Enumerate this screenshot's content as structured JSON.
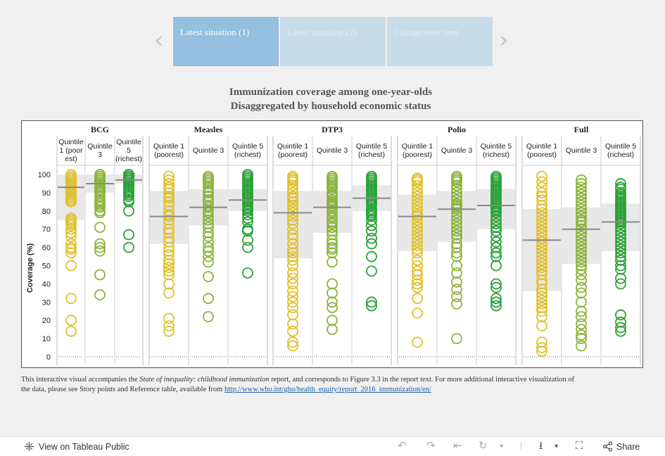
{
  "tabs": [
    {
      "label": "Latest situation (1)",
      "state": "active"
    },
    {
      "label": "Latest situation (2)",
      "state": "inactive"
    },
    {
      "label": "Change over time",
      "state": "inactive"
    }
  ],
  "title_line1": "Immunization coverage among one-year-olds",
  "title_line2": "Disaggregated by household economic status",
  "footnote": {
    "pre": "This interactive visual accompanies the ",
    "italic": "State of inequality: childhood immunization",
    "post": " report, and corresponds to Figure 3.3 in the report text. For more additional interactive visualization of the data, please see Story points and Reference table, available from ",
    "link": "http://www.who.int/gho/health_equity/report_2016_immunization/en/"
  },
  "toolbar": {
    "view_label": "View on Tableau Public",
    "share_label": "Share"
  },
  "colors": {
    "q1": "#e0c12e",
    "q3": "#8cb43c",
    "q5": "#2aa237",
    "band": "#e8e8e8",
    "median": "#8a8a8a"
  },
  "chart_data": {
    "type": "scatter",
    "ylabel": "Coverage (%)",
    "ylim": [
      0,
      100
    ],
    "yticks": [
      0,
      10,
      20,
      30,
      40,
      50,
      60,
      70,
      80,
      90,
      100
    ],
    "quintiles": [
      {
        "key": "q1",
        "lines": [
          "Quintile 1",
          "(poorest)"
        ],
        "lines_narrow": [
          "Quintile",
          "1 (poor",
          "est)"
        ]
      },
      {
        "key": "q3",
        "lines": [
          "Quintile 3"
        ],
        "lines_narrow": [
          "Quintile",
          "3"
        ]
      },
      {
        "key": "q5",
        "lines": [
          "Quintile 5",
          "(richest)"
        ],
        "lines_narrow": [
          "Quintile",
          "5",
          "(richest)"
        ]
      }
    ],
    "vaccines": [
      {
        "name": "BCG",
        "series": [
          {
            "quintile": "q1",
            "median": 93,
            "band": [
              75,
              100
            ],
            "values": [
              100,
              99,
              98,
              98,
              97,
              97,
              96,
              96,
              95,
              95,
              94,
              94,
              93,
              93,
              92,
              92,
              91,
              90,
              89,
              88,
              87,
              86,
              85,
              76,
              75,
              74,
              73,
              72,
              70,
              68,
              66,
              62,
              60,
              59,
              57,
              50,
              32,
              20,
              14
            ]
          },
          {
            "quintile": "q3",
            "median": 95,
            "band": [
              90,
              100
            ],
            "values": [
              100,
              99,
              99,
              98,
              97,
              97,
              96,
              95,
              94,
              93,
              92,
              91,
              90,
              88,
              86,
              85,
              84,
              83,
              82,
              80,
              79,
              71,
              62,
              60,
              58,
              45,
              34
            ]
          },
          {
            "quintile": "q5",
            "median": 97,
            "band": [
              95,
              100
            ],
            "values": [
              100,
              100,
              99,
              99,
              99,
              98,
              98,
              98,
              97,
              97,
              96,
              96,
              95,
              94,
              93,
              92,
              91,
              90,
              89,
              88,
              86,
              85,
              80,
              67,
              60
            ]
          }
        ]
      },
      {
        "name": "Measles",
        "series": [
          {
            "quintile": "q1",
            "median": 77,
            "band": [
              62,
              91
            ],
            "values": [
              99,
              97,
              95,
              93,
              92,
              90,
              88,
              87,
              85,
              83,
              80,
              78,
              77,
              75,
              73,
              70,
              68,
              65,
              63,
              60,
              58,
              56,
              53,
              51,
              49,
              47,
              45,
              40,
              35,
              21,
              17,
              14
            ]
          },
          {
            "quintile": "q3",
            "median": 82,
            "band": [
              72,
              92
            ],
            "values": [
              99,
              98,
              97,
              96,
              95,
              93,
              91,
              90,
              88,
              86,
              85,
              83,
              82,
              80,
              79,
              77,
              75,
              73,
              71,
              68,
              66,
              63,
              60,
              58,
              55,
              52,
              44,
              32,
              22
            ]
          },
          {
            "quintile": "q5",
            "median": 86,
            "band": [
              80,
              92
            ],
            "values": [
              100,
              99,
              98,
              97,
              96,
              95,
              94,
              93,
              92,
              91,
              90,
              89,
              88,
              87,
              86,
              85,
              84,
              83,
              82,
              81,
              80,
              78,
              76,
              74,
              70,
              69,
              64,
              60,
              46
            ]
          }
        ]
      },
      {
        "name": "DTP3",
        "series": [
          {
            "quintile": "q1",
            "median": 79,
            "band": [
              54,
              91
            ],
            "values": [
              99,
              98,
              97,
              96,
              94,
              92,
              90,
              88,
              87,
              85,
              83,
              81,
              79,
              77,
              75,
              73,
              70,
              67,
              65,
              62,
              59,
              57,
              55,
              53,
              50,
              46,
              43,
              40,
              36,
              33,
              30,
              27,
              23,
              18,
              14,
              8,
              6
            ]
          },
          {
            "quintile": "q3",
            "median": 82,
            "band": [
              68,
              91
            ],
            "values": [
              99,
              98,
              97,
              96,
              95,
              94,
              93,
              92,
              90,
              89,
              88,
              86,
              85,
              84,
              83,
              82,
              80,
              79,
              77,
              76,
              74,
              73,
              71,
              69,
              67,
              64,
              62,
              60,
              59,
              57,
              52,
              40,
              35,
              30,
              27,
              20,
              15
            ]
          },
          {
            "quintile": "q5",
            "median": 87,
            "band": [
              80,
              94
            ],
            "values": [
              99,
              98,
              97,
              96,
              95,
              94,
              93,
              92,
              91,
              90,
              89,
              88,
              87,
              86,
              85,
              84,
              83,
              81,
              80,
              79,
              78,
              77,
              75,
              72,
              69,
              65,
              62,
              55,
              47,
              30,
              28
            ]
          }
        ]
      },
      {
        "name": "Polio",
        "series": [
          {
            "quintile": "q1",
            "median": 77,
            "band": [
              58,
              89
            ],
            "values": [
              98,
              97,
              96,
              94,
              92,
              90,
              88,
              86,
              84,
              82,
              80,
              78,
              77,
              75,
              73,
              71,
              69,
              67,
              65,
              63,
              61,
              59,
              57,
              53,
              50,
              47,
              45,
              42,
              40,
              38,
              32,
              24,
              8
            ]
          },
          {
            "quintile": "q3",
            "median": 81,
            "band": [
              63,
              91
            ],
            "values": [
              99,
              98,
              97,
              96,
              94,
              92,
              90,
              88,
              86,
              84,
              83,
              82,
              81,
              79,
              77,
              75,
              73,
              71,
              69,
              67,
              65,
              62,
              60,
              57,
              55,
              50,
              46,
              41,
              37,
              33,
              29,
              10
            ]
          },
          {
            "quintile": "q5",
            "median": 83,
            "band": [
              70,
              92
            ],
            "values": [
              99,
              98,
              97,
              96,
              95,
              94,
              93,
              92,
              91,
              90,
              89,
              88,
              87,
              86,
              85,
              84,
              83,
              82,
              81,
              80,
              79,
              77,
              75,
              73,
              71,
              69,
              66,
              63,
              60,
              57,
              55,
              50,
              40,
              38,
              32,
              30,
              28
            ]
          }
        ]
      },
      {
        "name": "Full",
        "series": [
          {
            "quintile": "q1",
            "median": 64,
            "band": [
              36,
              81
            ],
            "values": [
              99,
              96,
              93,
              90,
              88,
              86,
              83,
              81,
              79,
              77,
              75,
              73,
              71,
              69,
              67,
              65,
              63,
              61,
              59,
              57,
              55,
              53,
              51,
              49,
              47,
              45,
              42,
              40,
              37,
              35,
              33,
              31,
              29,
              27,
              25,
              22,
              17,
              8,
              5,
              3
            ]
          },
          {
            "quintile": "q3",
            "median": 70,
            "band": [
              51,
              82
            ],
            "values": [
              97,
              95,
              93,
              91,
              89,
              87,
              85,
              83,
              81,
              79,
              77,
              75,
              74,
              72,
              70,
              68,
              66,
              64,
              62,
              60,
              58,
              56,
              54,
              52,
              50,
              48,
              45,
              42,
              38,
              35,
              30,
              25,
              22,
              18,
              15,
              12,
              10,
              6
            ]
          },
          {
            "quintile": "q5",
            "median": 74,
            "band": [
              58,
              84
            ],
            "values": [
              95,
              93,
              92,
              90,
              89,
              88,
              87,
              86,
              85,
              84,
              83,
              82,
              81,
              80,
              79,
              78,
              77,
              76,
              75,
              74,
              73,
              71,
              69,
              67,
              65,
              63,
              61,
              59,
              57,
              55,
              53,
              50,
              48,
              43,
              40,
              23,
              19,
              16,
              14
            ]
          }
        ]
      }
    ]
  }
}
